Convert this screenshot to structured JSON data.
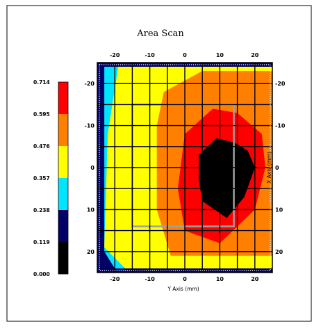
{
  "chart_data": {
    "type": "heatmap",
    "title": "Area Scan",
    "xlabel": "Y Axis (mm)",
    "ylabel": "X Axis (mm)",
    "xlim": [
      -25,
      25
    ],
    "ylim": [
      -25,
      25
    ],
    "y_inverted": true,
    "xticks": [
      "-20",
      "-10",
      "0",
      "10",
      "20"
    ],
    "yticks": [
      "-20",
      "-10",
      "0",
      "10",
      "20"
    ],
    "grid": true,
    "colorbar": {
      "levels": [
        "0.000",
        "0.119",
        "0.238",
        "0.357",
        "0.476",
        "0.595",
        "0.714"
      ],
      "colors": [
        "#000000",
        "#000066",
        "#00e5ff",
        "#ffff00",
        "#ff8000",
        "#ff0000"
      ]
    },
    "peak": {
      "x": 10,
      "y": 0,
      "value": 0.714
    },
    "contours": [
      {
        "level": "0.238",
        "polygon": [
          [
            -23,
            -24
          ],
          [
            -12,
            -24
          ],
          [
            25,
            -24
          ],
          [
            25,
            24
          ],
          [
            -20,
            24
          ],
          [
            -23,
            20
          ],
          [
            -23,
            -24
          ]
        ]
      },
      {
        "level": "0.357",
        "polygon": [
          [
            -19,
            -24
          ],
          [
            -10,
            -24
          ],
          [
            25,
            -24
          ],
          [
            25,
            24
          ],
          [
            -17,
            24
          ],
          [
            -23,
            19
          ],
          [
            -22,
            -8
          ],
          [
            -19,
            -24
          ]
        ]
      },
      {
        "level": "0.476",
        "polygon": [
          [
            -6,
            -18
          ],
          [
            5,
            -23
          ],
          [
            25,
            -23
          ],
          [
            25,
            21
          ],
          [
            -4,
            21
          ],
          [
            -8,
            10
          ],
          [
            -8,
            -10
          ],
          [
            -6,
            -18
          ]
        ]
      },
      {
        "level": "0.595",
        "polygon": [
          [
            0,
            -8
          ],
          [
            8,
            -14
          ],
          [
            15,
            -13
          ],
          [
            22,
            -8
          ],
          [
            23,
            0
          ],
          [
            20,
            10
          ],
          [
            10,
            18
          ],
          [
            0,
            15
          ],
          [
            -2,
            5
          ],
          [
            0,
            -8
          ]
        ]
      },
      {
        "level": "0.714",
        "polygon": [
          [
            4,
            -3
          ],
          [
            9,
            -7
          ],
          [
            14,
            -6
          ],
          [
            18,
            -4
          ],
          [
            20,
            0
          ],
          [
            17,
            7
          ],
          [
            12,
            12
          ],
          [
            5,
            8
          ],
          [
            4,
            3
          ],
          [
            4,
            -3
          ]
        ]
      }
    ],
    "scan_box": {
      "x": [
        -15,
        14
      ],
      "y": [
        -15,
        14
      ]
    }
  }
}
